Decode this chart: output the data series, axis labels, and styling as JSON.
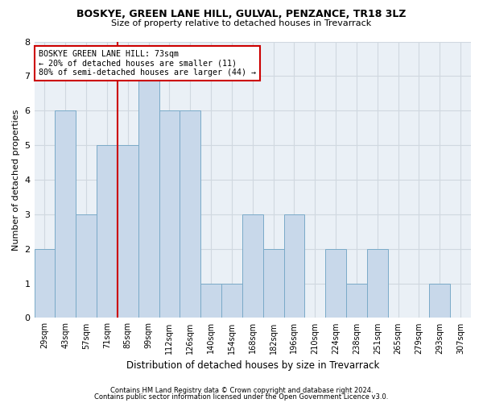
{
  "title": "BOSKYE, GREEN LANE HILL, GULVAL, PENZANCE, TR18 3LZ",
  "subtitle": "Size of property relative to detached houses in Trevarrack",
  "xlabel": "Distribution of detached houses by size in Trevarrack",
  "ylabel": "Number of detached properties",
  "footer_line1": "Contains HM Land Registry data © Crown copyright and database right 2024.",
  "footer_line2": "Contains public sector information licensed under the Open Government Licence v3.0.",
  "bin_labels": [
    "29sqm",
    "43sqm",
    "57sqm",
    "71sqm",
    "85sqm",
    "99sqm",
    "112sqm",
    "126sqm",
    "140sqm",
    "154sqm",
    "168sqm",
    "182sqm",
    "196sqm",
    "210sqm",
    "224sqm",
    "238sqm",
    "251sqm",
    "265sqm",
    "279sqm",
    "293sqm",
    "307sqm"
  ],
  "bar_values": [
    2,
    6,
    3,
    5,
    5,
    7,
    6,
    6,
    1,
    1,
    3,
    2,
    3,
    0,
    2,
    1,
    2,
    0,
    0,
    1,
    0
  ],
  "bar_color": "#c8d8ea",
  "bar_edge_color": "#7aaac8",
  "grid_color": "#d0d8e0",
  "reference_line_x": 3.5,
  "reference_line_color": "#cc0000",
  "annotation_text": "BOSKYE GREEN LANE HILL: 73sqm\n← 20% of detached houses are smaller (11)\n80% of semi-detached houses are larger (44) →",
  "annotation_box_color": "#ffffff",
  "annotation_box_edge_color": "#cc0000",
  "ylim": [
    0,
    8
  ],
  "yticks": [
    0,
    1,
    2,
    3,
    4,
    5,
    6,
    7,
    8
  ],
  "background_color": "#ffffff",
  "plot_bg_color": "#eaf0f6"
}
